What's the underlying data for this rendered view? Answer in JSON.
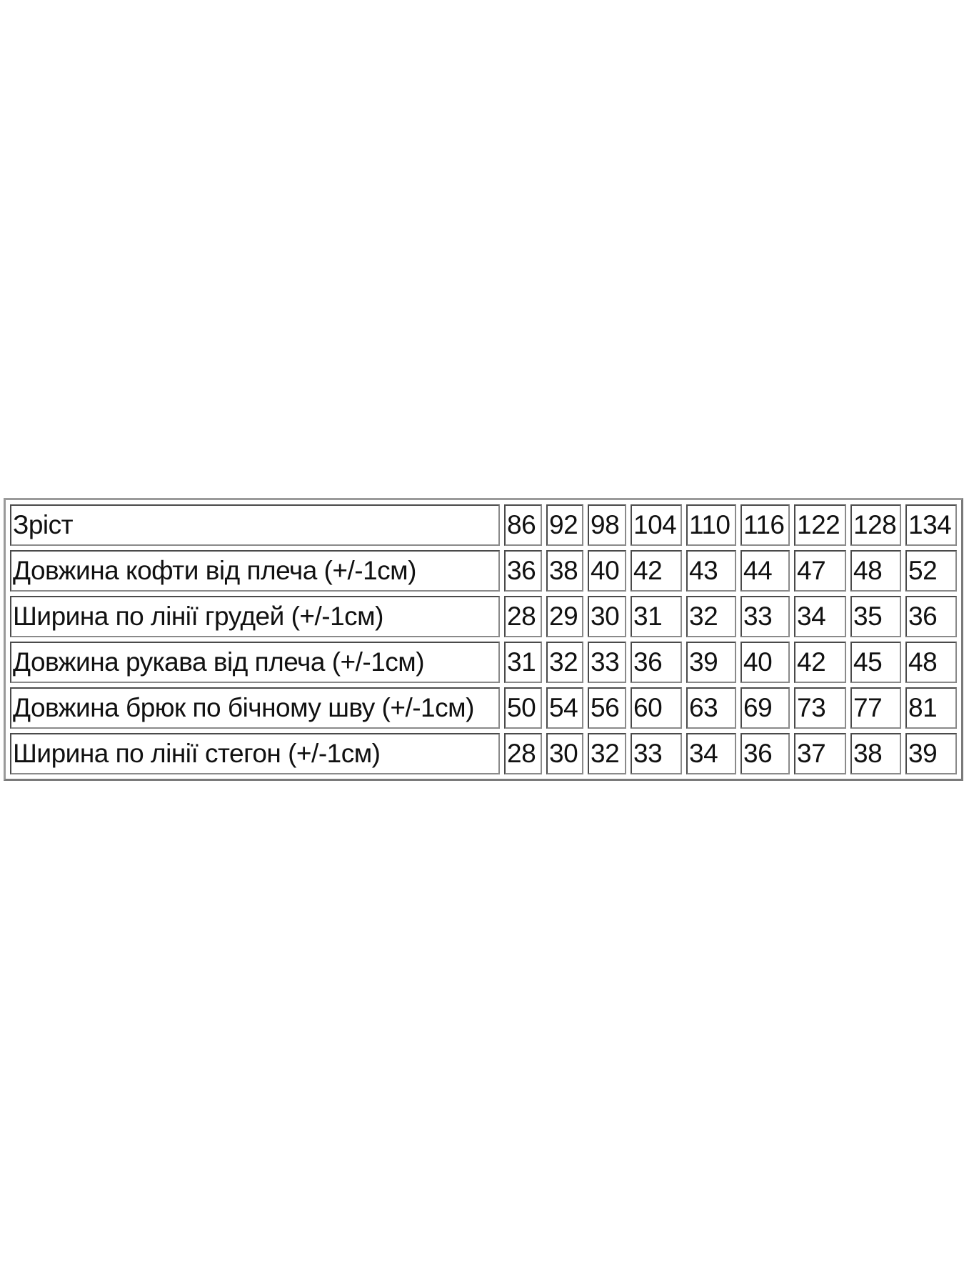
{
  "size_table": {
    "header": {
      "label": "Зріст",
      "sizes": [
        "86",
        "92",
        "98",
        "104",
        "110",
        "116",
        "122",
        "128",
        "134"
      ]
    },
    "rows": [
      {
        "label": "Довжина кофти від плеча (+/-1см)",
        "values": [
          "36",
          "38",
          "40",
          "42",
          "43",
          "44",
          "47",
          "48",
          "52"
        ]
      },
      {
        "label": "Ширина по лінії грудей (+/-1см)",
        "values": [
          "28",
          "29",
          "30",
          "31",
          "32",
          "33",
          "34",
          "35",
          "36"
        ]
      },
      {
        "label": "Довжина рукава від плеча (+/-1см)",
        "values": [
          "31",
          "32",
          "33",
          "36",
          "39",
          "40",
          "42",
          "45",
          "48"
        ]
      },
      {
        "label": "Довжина брюк по бічному шву (+/-1см)",
        "values": [
          "50",
          "54",
          "56",
          "60",
          "63",
          "69",
          "73",
          "77",
          "81"
        ]
      },
      {
        "label": "Ширина по лінії стегон (+/-1см)",
        "values": [
          "28",
          "30",
          "32",
          "33",
          "34",
          "36",
          "37",
          "38",
          "39"
        ]
      }
    ]
  }
}
